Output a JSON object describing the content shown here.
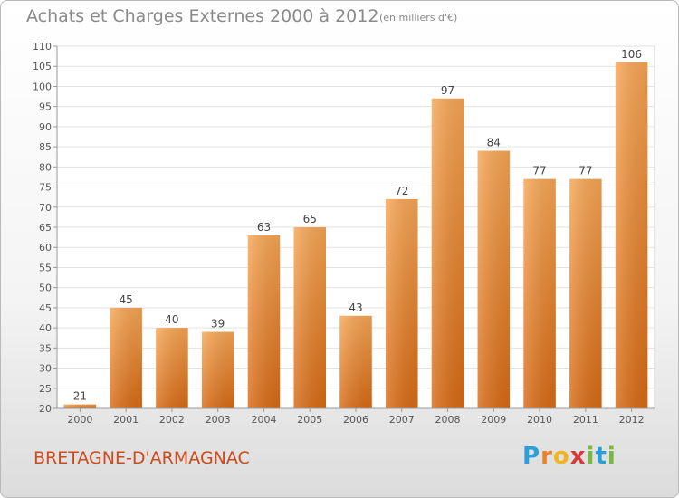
{
  "header": {
    "title": "Achats et Charges Externes 2000 à 2012",
    "subtitle": "(en milliers d'€)"
  },
  "footer": {
    "commune": "BRETAGNE-D'ARMAGNAC",
    "logo_letters": [
      "P",
      "r",
      "o",
      "x",
      "i",
      "t",
      "i"
    ],
    "logo_colors": [
      "#2a9fd8",
      "#e8822b",
      "#f2b420",
      "#d63a3a",
      "#79b842",
      "#2a9fd8",
      "#79b842"
    ]
  },
  "chart_data": {
    "type": "bar",
    "title": "Achats et Charges Externes 2000 à 2012",
    "subtitle": "(en milliers d'€)",
    "xlabel": "",
    "ylabel": "",
    "categories": [
      "2000",
      "2001",
      "2002",
      "2003",
      "2004",
      "2005",
      "2006",
      "2007",
      "2008",
      "2009",
      "2010",
      "2011",
      "2012"
    ],
    "values": [
      21,
      45,
      40,
      39,
      63,
      65,
      43,
      72,
      97,
      84,
      77,
      77,
      106
    ],
    "ylim": [
      20,
      110
    ],
    "yticks": [
      20,
      25,
      30,
      35,
      40,
      45,
      50,
      55,
      60,
      65,
      70,
      75,
      80,
      85,
      90,
      95,
      100,
      105,
      110
    ],
    "grid": true,
    "bar_color": "#f0922f"
  }
}
